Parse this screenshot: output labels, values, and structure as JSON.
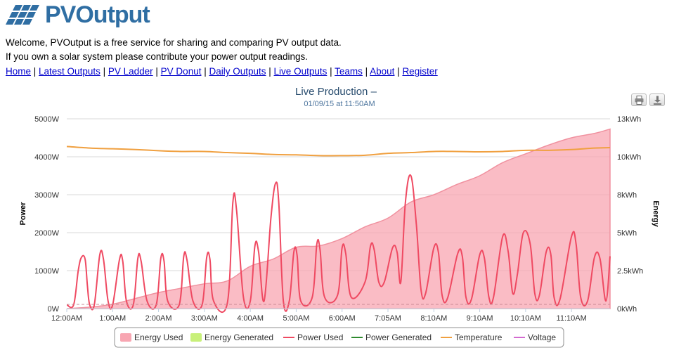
{
  "header": {
    "logo_text": "PVOutput",
    "welcome_line": "Welcome, PVOutput is a free service for sharing and comparing PV output data.",
    "contribute_line": "If you own a solar system please contribute your power output readings."
  },
  "nav": {
    "items": [
      {
        "label": "Home"
      },
      {
        "label": "Latest Outputs"
      },
      {
        "label": "PV Ladder"
      },
      {
        "label": "PV Donut"
      },
      {
        "label": "Daily Outputs"
      },
      {
        "label": "Live Outputs"
      },
      {
        "label": "Teams"
      },
      {
        "label": "About"
      },
      {
        "label": "Register"
      }
    ]
  },
  "toolbar": {
    "print_icon": "printer-icon",
    "export_icon": "download-icon"
  },
  "chart_data": {
    "type": "line",
    "title": "Live Production –",
    "subtitle": "01/09/15 at 11:50AM",
    "ylabel": "Power",
    "y2label": "Energy",
    "ylim": [
      0,
      5000
    ],
    "y2lim": [
      0,
      13
    ],
    "y_ticks": [
      "0W",
      "1000W",
      "2000W",
      "3000W",
      "4000W",
      "5000W"
    ],
    "y2_ticks": [
      "0kWh",
      "2.5kWh",
      "5kWh",
      "8kWh",
      "10kWh",
      "13kWh"
    ],
    "x_ticks": [
      "12:00AM",
      "1:00AM",
      "2:00AM",
      "3:00AM",
      "4:00AM",
      "5:00AM",
      "6:00AM",
      "7:05AM",
      "8:10AM",
      "9:10AM",
      "10:10AM",
      "11:10AM"
    ],
    "x_range_hours": [
      0,
      11.84
    ],
    "legend_position": "bottom",
    "colors": {
      "energy_used": "#f8a6b2",
      "energy_generated": "#c8f07a",
      "power_used": "#ef4a62",
      "power_generated": "#2e8a2e",
      "temperature": "#f0a040",
      "voltage": "#d36ad0"
    },
    "series": [
      {
        "name": "Energy Used",
        "type": "area",
        "axis": "energy",
        "x": [
          0,
          0.5,
          1.0,
          1.5,
          2.0,
          2.5,
          3.0,
          3.5,
          4.0,
          4.5,
          5.0,
          5.5,
          6.0,
          6.5,
          7.0,
          7.5,
          8.0,
          8.5,
          9.0,
          9.5,
          10.0,
          10.5,
          11.0,
          11.5,
          11.84
        ],
        "values": [
          0,
          0.1,
          0.3,
          0.7,
          1.1,
          1.4,
          1.7,
          1.9,
          2.9,
          3.4,
          4.2,
          4.3,
          4.8,
          5.6,
          6.2,
          7.3,
          7.8,
          8.5,
          9.1,
          10.0,
          10.6,
          11.2,
          11.7,
          12.0,
          12.3
        ]
      },
      {
        "name": "Energy Generated",
        "type": "area",
        "axis": "energy",
        "x": [],
        "values": []
      },
      {
        "name": "Power Used",
        "type": "line",
        "axis": "power",
        "x": [
          0,
          0.15,
          0.25,
          0.32,
          0.4,
          0.45,
          0.5,
          0.6,
          0.72,
          0.8,
          0.9,
          1.0,
          1.15,
          1.22,
          1.3,
          1.45,
          1.55,
          1.62,
          1.75,
          1.95,
          2.05,
          2.12,
          2.2,
          2.45,
          2.55,
          2.62,
          2.75,
          2.95,
          3.05,
          3.12,
          3.2,
          3.5,
          3.62,
          3.7,
          3.85,
          4.0,
          4.1,
          4.18,
          4.3,
          4.45,
          4.55,
          4.62,
          4.72,
          4.85,
          4.95,
          5.02,
          5.1,
          5.35,
          5.45,
          5.52,
          5.62,
          5.9,
          6.0,
          6.08,
          6.2,
          6.5,
          6.62,
          6.7,
          6.8,
          6.92,
          7.1,
          7.2,
          7.28,
          7.38,
          7.5,
          7.62,
          7.72,
          7.82,
          8.0,
          8.1,
          8.18,
          8.3,
          8.52,
          8.62,
          8.7,
          8.82,
          9.0,
          9.1,
          9.2,
          9.3,
          9.5,
          9.62,
          9.72,
          9.82,
          9.95,
          10.1,
          10.2,
          10.3,
          10.45,
          10.55,
          10.62,
          10.75,
          11.0,
          11.1,
          11.2,
          11.35,
          11.5,
          11.62,
          11.75,
          11.84
        ],
        "values": [
          100,
          100,
          1000,
          1350,
          1300,
          600,
          100,
          100,
          1420,
          1300,
          200,
          100,
          1300,
          1250,
          200,
          100,
          1330,
          1250,
          200,
          100,
          1330,
          1250,
          200,
          100,
          1380,
          1280,
          200,
          100,
          1350,
          1300,
          200,
          150,
          2800,
          2600,
          300,
          200,
          1650,
          1500,
          200,
          2400,
          3300,
          2800,
          200,
          200,
          1500,
          1400,
          200,
          300,
          1700,
          1550,
          300,
          350,
          1600,
          1450,
          300,
          700,
          1650,
          1550,
          700,
          700,
          1600,
          1480,
          700,
          2800,
          3500,
          2200,
          500,
          400,
          1600,
          1480,
          350,
          280,
          1450,
          1380,
          300,
          250,
          1420,
          1340,
          300,
          300,
          1900,
          1500,
          400,
          900,
          2000,
          1700,
          400,
          350,
          1500,
          1420,
          300,
          250,
          1900,
          1700,
          300,
          200,
          1350,
          1320,
          200,
          1380
        ]
      },
      {
        "name": "Power Generated",
        "type": "line",
        "axis": "power",
        "x": [],
        "values": []
      },
      {
        "name": "Temperature",
        "type": "line",
        "axis": "power",
        "x": [
          0,
          0.5,
          1.0,
          1.5,
          2.0,
          2.5,
          3.0,
          3.5,
          4.0,
          4.5,
          5.0,
          5.5,
          6.0,
          6.5,
          7.0,
          7.5,
          8.0,
          8.5,
          9.0,
          9.5,
          10.0,
          10.5,
          11.0,
          11.5,
          11.84
        ],
        "values": [
          4270,
          4230,
          4210,
          4190,
          4160,
          4140,
          4140,
          4110,
          4090,
          4060,
          4050,
          4030,
          4030,
          4040,
          4090,
          4110,
          4140,
          4140,
          4130,
          4140,
          4170,
          4170,
          4190,
          4230,
          4240
        ]
      },
      {
        "name": "Voltage",
        "type": "line",
        "axis": "power",
        "x": [],
        "values": []
      }
    ]
  }
}
